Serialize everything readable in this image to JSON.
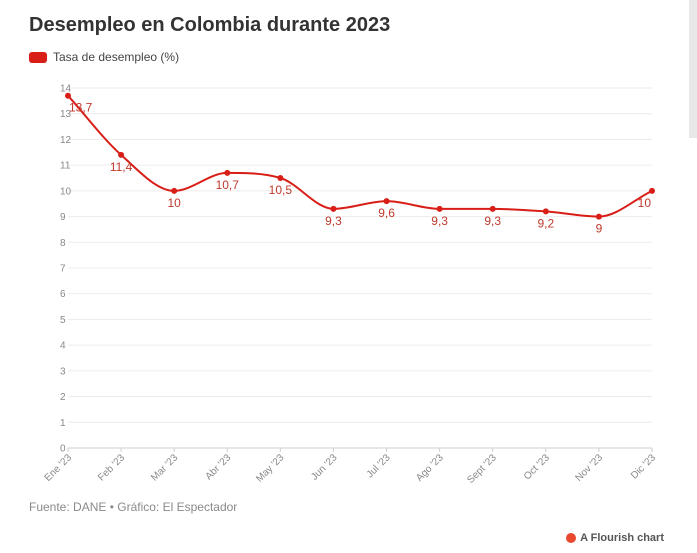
{
  "header": {
    "title": "Desempleo en Colombia durante 2023"
  },
  "chart_data": {
    "type": "line",
    "title": "Desempleo en Colombia durante 2023",
    "xlabel": "",
    "ylabel": "",
    "categories": [
      "Ene '23",
      "Feb '23",
      "Mar '23",
      "Abr '23",
      "May '23",
      "Jun '23",
      "Jul '23",
      "Ago '23",
      "Sept '23",
      "Oct '23",
      "Nov '23",
      "Dic '23"
    ],
    "series": [
      {
        "name": "Tasa de desempleo (%)",
        "color": "#d91e18",
        "values": [
          13.7,
          11.4,
          10,
          10.7,
          10.5,
          9.3,
          9.6,
          9.3,
          9.3,
          9.2,
          9,
          10
        ],
        "labels": [
          "13,7",
          "11,4",
          "10",
          "10,7",
          "10,5",
          "9,3",
          "9,6",
          "9,3",
          "9,3",
          "9,2",
          "9",
          "10"
        ]
      }
    ],
    "ylim": [
      0,
      14
    ],
    "yticks": [
      0,
      1,
      2,
      3,
      4,
      5,
      6,
      7,
      8,
      9,
      10,
      11,
      12,
      13,
      14
    ],
    "grid": true,
    "legend": "top-left"
  },
  "footer": {
    "source": "Fuente: DANE • Gráfico: El Espectador",
    "credit": "A Flourish chart"
  }
}
